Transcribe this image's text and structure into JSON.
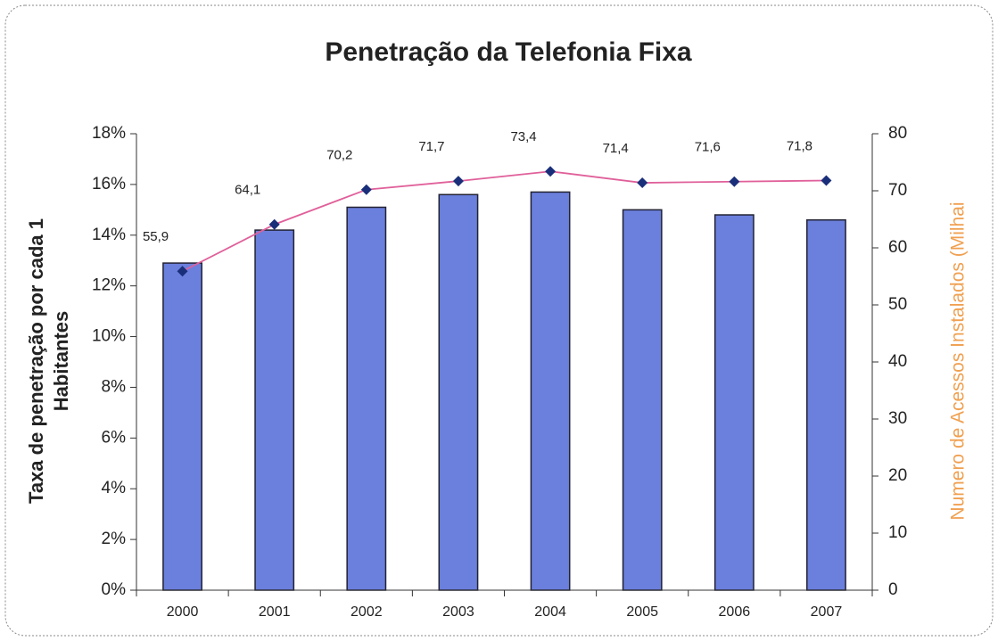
{
  "chart_data": {
    "type": "bar_line",
    "title": "Penetração da Telefonia Fixa",
    "y_label": [
      "Taxa de penetração por cada 1",
      "Habitantes"
    ],
    "y2_label": "Numero de Acessos Instalados (Milhai",
    "categories": [
      "2000",
      "2001",
      "2002",
      "2003",
      "2004",
      "2005",
      "2006",
      "2007"
    ],
    "series": [
      {
        "type": "bar",
        "color": "#6b7fdc",
        "values": [
          12.9,
          14.2,
          15.1,
          15.6,
          15.7,
          15.0,
          14.8,
          14.6
        ]
      },
      {
        "type": "line",
        "axis": "y2",
        "color": "#e0609a",
        "marker_color": "#1a2f7a",
        "values": [
          55.9,
          64.1,
          70.2,
          71.7,
          73.4,
          71.4,
          71.6,
          71.8
        ],
        "value_labels": [
          "55,9",
          "64,1",
          "70,2",
          "71,7",
          "73,4",
          "71,4",
          "71,6",
          "71,8"
        ]
      }
    ],
    "ylim": [
      0,
      18
    ],
    "yticks": [
      {
        "value": 0,
        "label": "0%"
      },
      {
        "value": 2,
        "label": "2%"
      },
      {
        "value": 4,
        "label": "4%"
      },
      {
        "value": 6,
        "label": "6%"
      },
      {
        "value": 8,
        "label": "8%"
      },
      {
        "value": 10,
        "label": "10%"
      },
      {
        "value": 12,
        "label": "12%"
      },
      {
        "value": 14,
        "label": "14%"
      },
      {
        "value": 16,
        "label": "16%"
      },
      {
        "value": 18,
        "label": "18%"
      }
    ],
    "y2lim": [
      0,
      80
    ],
    "y2ticks": [
      0,
      10,
      20,
      30,
      40,
      50,
      60,
      70,
      80
    ]
  }
}
